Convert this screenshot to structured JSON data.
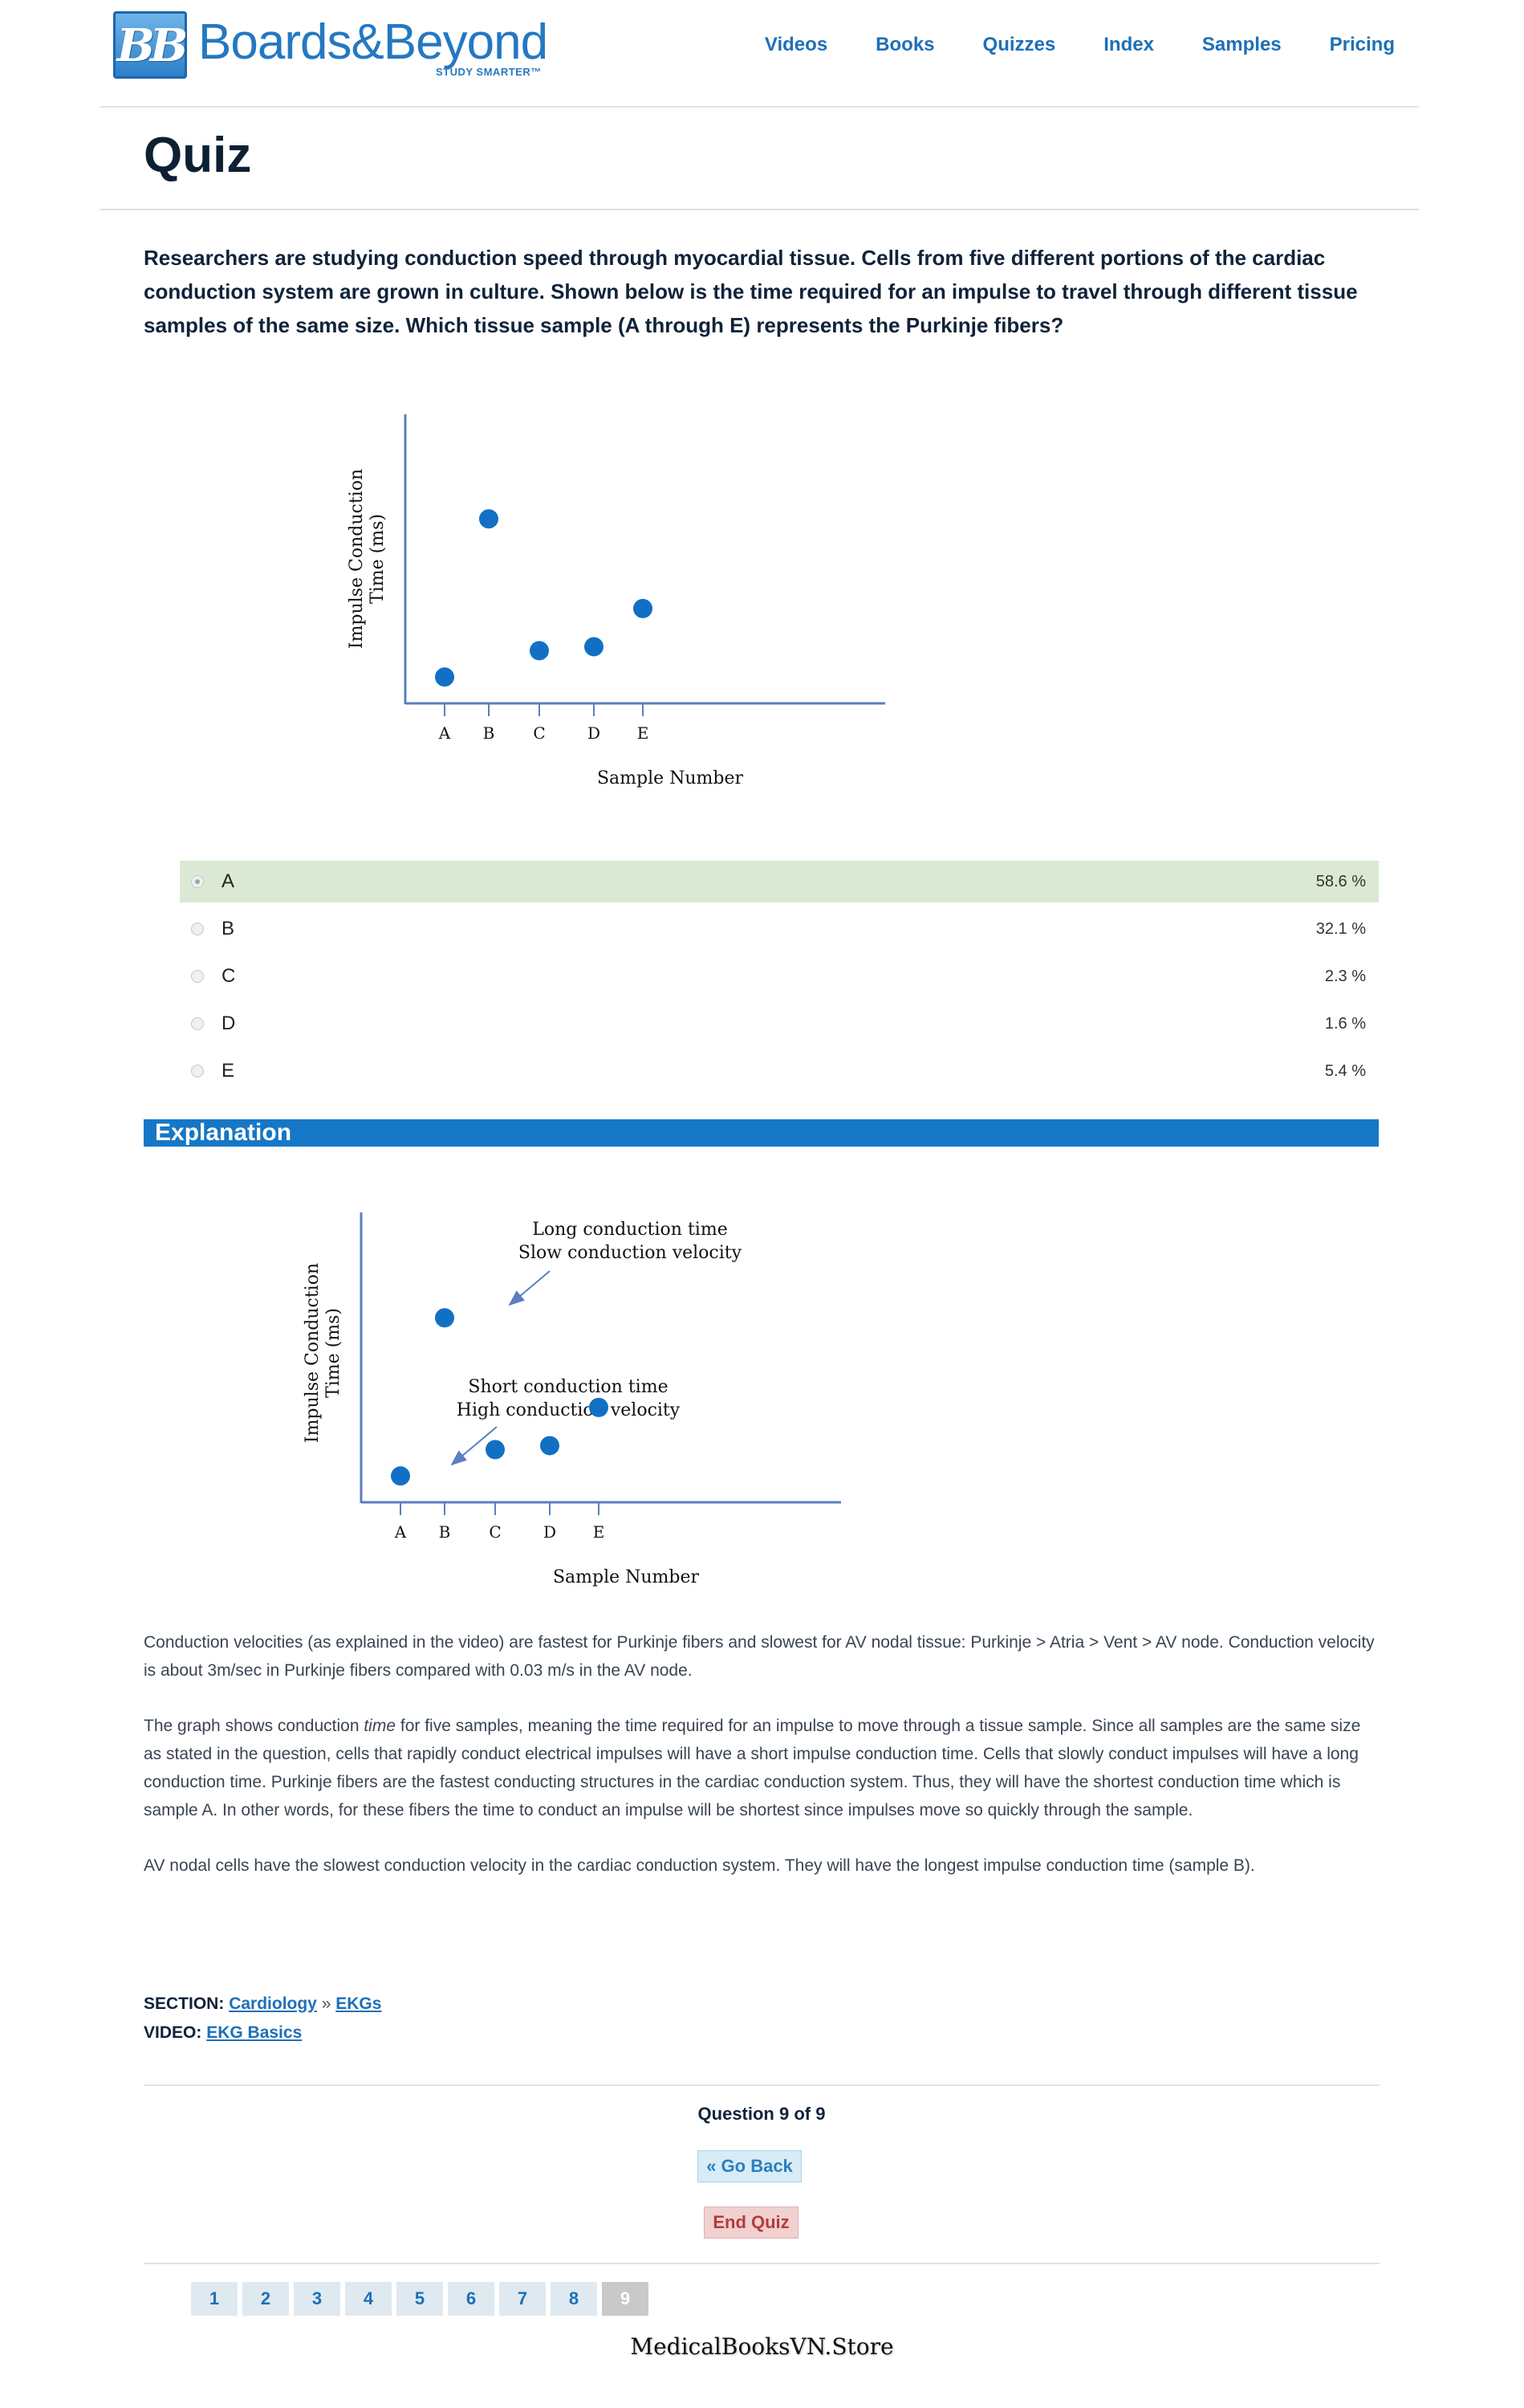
{
  "header": {
    "logo_mark": "BB",
    "logo_text": "Boards&Beyond",
    "logo_tag": "STUDY SMARTER™",
    "nav": [
      "Videos",
      "Books",
      "Quizzes",
      "Index",
      "Samples",
      "Pricing"
    ]
  },
  "page_title": "Quiz",
  "question": "Researchers are studying conduction speed through myocardial tissue. Cells from five different portions of the cardiac conduction system are grown in culture. Shown below is the time required for an impulse to travel through different tissue samples of the same size. Which tissue sample (A through E) represents the Purkinje fibers?",
  "answers": [
    {
      "label": "A",
      "percent": "58.6 %",
      "selected": true
    },
    {
      "label": "B",
      "percent": "32.1 %",
      "selected": false
    },
    {
      "label": "C",
      "percent": "2.3 %",
      "selected": false
    },
    {
      "label": "D",
      "percent": "1.6 %",
      "selected": false
    },
    {
      "label": "E",
      "percent": "5.4 %",
      "selected": false
    }
  ],
  "explanation": {
    "heading": "Explanation",
    "paragraphs": [
      "Conduction velocities (as explained in the video) are fastest for Purkinje fibers and slowest for AV nodal tissue: Purkinje > Atria > Vent > AV node. Conduction velocity is about 3m/sec in Purkinje fibers compared with 0.03 m/s in the AV node.",
      "The graph shows conduction time for five samples, meaning the time required for an impulse to move through a tissue sample. Since all samples are the same size as stated in the question, cells that rapidly conduct electrical impulses will have a short impulse conduction time. Cells that slowly conduct impulses will have a long conduction time. Purkinje fibers are the fastest conducting structures in the cardiac conduction system. Thus, they will have the shortest conduction time which is sample A. In other words, for these fibers the time to conduct an impulse will be shortest since impulses move so quickly through the sample.",
      "AV nodal cells have the slowest conduction velocity in the cardiac conduction system. They will have the longest impulse conduction time (sample B)."
    ]
  },
  "chart_data": [
    {
      "type": "scatter",
      "xlabel": "Sample Number",
      "ylabel_line1": "Impulse Conduction",
      "ylabel_line2": "Time (ms)",
      "categories": [
        "A",
        "B",
        "C",
        "D",
        "E"
      ],
      "values": [
        1.0,
        7.0,
        2.0,
        2.15,
        3.6
      ],
      "ylim": [
        0,
        11
      ],
      "grid": false
    },
    {
      "type": "scatter",
      "xlabel": "Sample Number",
      "ylabel_line1": "Impulse Conduction",
      "ylabel_line2": "Time (ms)",
      "categories": [
        "A",
        "B",
        "C",
        "D",
        "E"
      ],
      "values": [
        1.0,
        7.0,
        2.0,
        2.15,
        3.6
      ],
      "ylim": [
        0,
        11
      ],
      "grid": false,
      "annotations": [
        {
          "target": "B",
          "line1": "Long conduction time",
          "line2": "Slow conduction velocity"
        },
        {
          "target": "A",
          "line1": "Short conduction time",
          "line2": "High conduction velocity"
        }
      ]
    }
  ],
  "meta": {
    "section_label": "SECTION:",
    "section_link1": "Cardiology",
    "separator": "»",
    "section_link2": "EKGs",
    "video_label": "VIDEO:",
    "video_link": "EKG Basics"
  },
  "footer": {
    "question_count": "Question 9 of 9",
    "go_back": "« Go Back",
    "end_quiz": "End Quiz"
  },
  "pages": [
    "1",
    "2",
    "3",
    "4",
    "5",
    "6",
    "7",
    "8",
    "9"
  ],
  "current_page": "9",
  "watermark": "MedicalBooksVN.Store",
  "colors": {
    "accent": "#1677c6",
    "dot": "#1270c4",
    "selected_bg": "#dbe9d4"
  }
}
